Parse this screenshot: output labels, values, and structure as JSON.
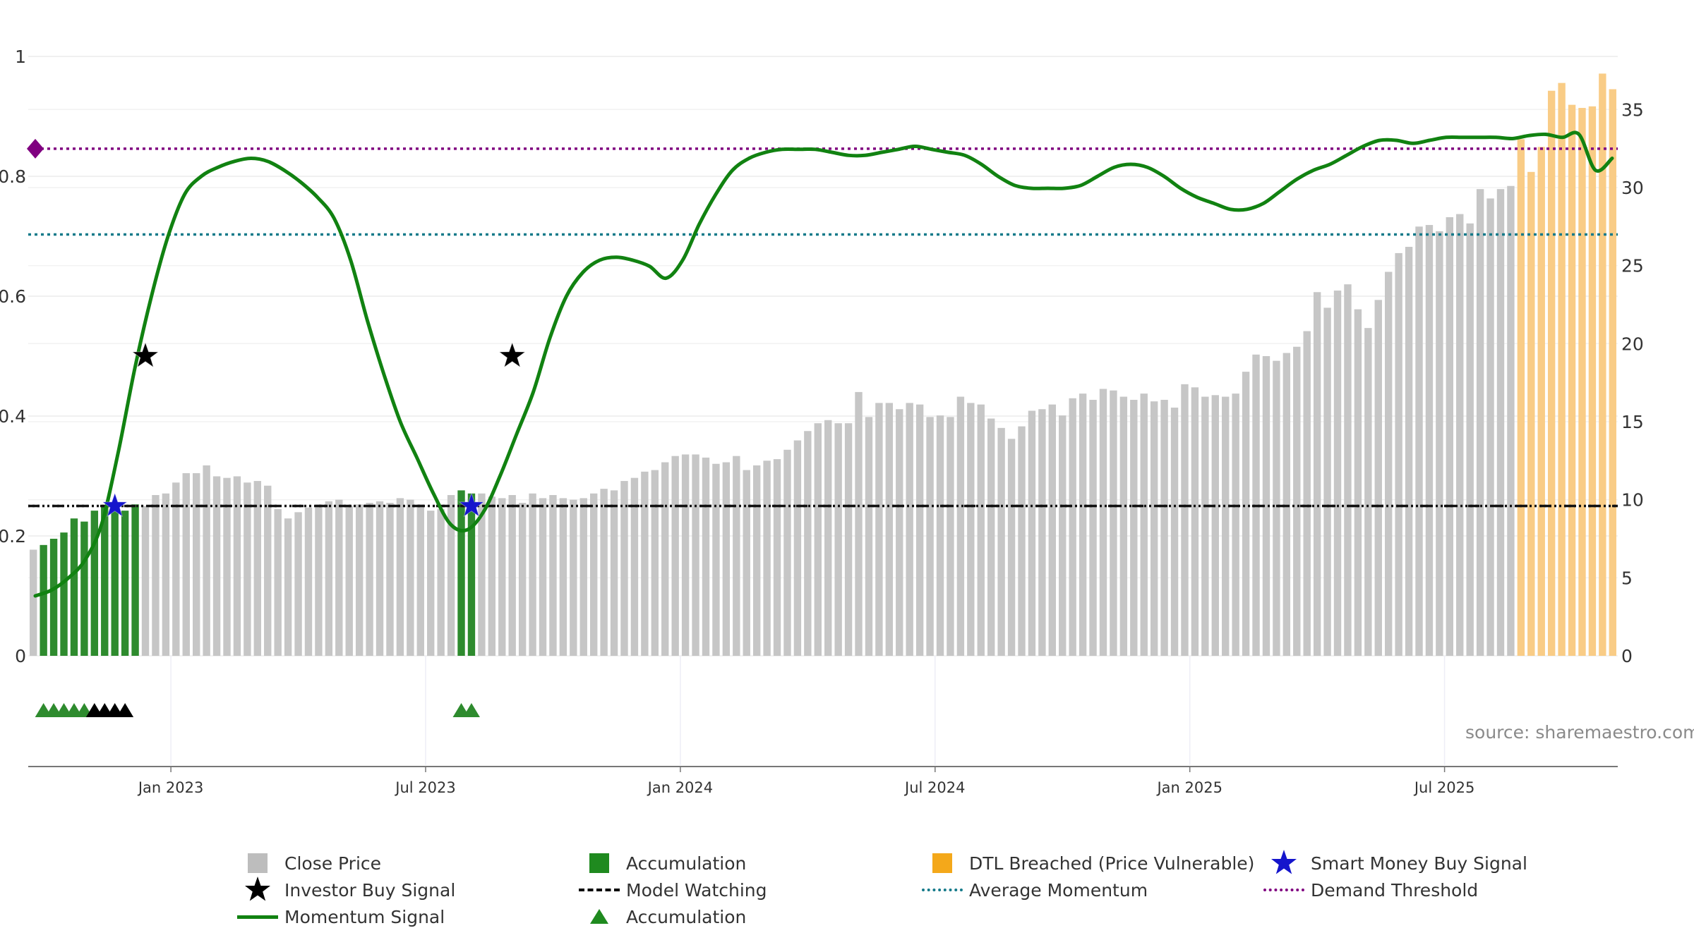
{
  "chart_data": {
    "type": "bar",
    "title": "",
    "source_label": "source: sharemaestro.com",
    "left_axis": {
      "ylim": [
        0,
        1
      ],
      "tick_labels": [
        "0",
        "0.2",
        "0.4",
        "0.6",
        "0.8",
        "1"
      ],
      "tick_values": [
        0,
        0.2,
        0.4,
        0.6,
        0.8,
        1
      ]
    },
    "right_axis": {
      "ylim": [
        0,
        38.4
      ],
      "tick_labels": [
        "0",
        "5",
        "10",
        "15",
        "20",
        "25",
        "30",
        "35"
      ],
      "tick_values": [
        0,
        5,
        10,
        15,
        20,
        25,
        30,
        35
      ]
    },
    "x_axis": {
      "tick_labels": [
        "Jan 2023",
        "Jul 2023",
        "Jan 2024",
        "Jul 2024",
        "Jan 2025",
        "Jul 2025"
      ],
      "tick_bar_index": [
        14,
        39,
        64,
        89,
        114,
        139
      ]
    },
    "close_price": [
      6.8,
      7.1,
      7.5,
      7.9,
      8.8,
      8.6,
      9.3,
      9.6,
      9.5,
      9.3,
      9.7,
      9.6,
      10.3,
      10.4,
      11.1,
      11.7,
      11.7,
      12.2,
      11.5,
      11.4,
      11.5,
      11.1,
      11.2,
      10.9,
      9.4,
      8.8,
      9.2,
      9.5,
      9.7,
      9.9,
      10.0,
      9.6,
      9.7,
      9.8,
      9.9,
      9.8,
      10.1,
      10.0,
      9.7,
      9.3,
      9.4,
      10.3,
      10.6,
      10.4,
      10.4,
      10.2,
      10.1,
      10.3,
      9.8,
      10.4,
      10.1,
      10.3,
      10.1,
      10.0,
      10.1,
      10.4,
      10.7,
      10.6,
      11.2,
      11.4,
      11.8,
      11.9,
      12.4,
      12.8,
      12.9,
      12.9,
      12.7,
      12.3,
      12.4,
      12.8,
      11.9,
      12.2,
      12.5,
      12.6,
      13.2,
      13.8,
      14.4,
      14.9,
      15.1,
      14.9,
      14.9,
      16.9,
      15.3,
      16.2,
      16.2,
      15.8,
      16.2,
      16.1,
      15.3,
      15.4,
      15.3,
      16.6,
      16.2,
      16.1,
      15.2,
      14.6,
      13.9,
      14.7,
      15.7,
      15.8,
      16.1,
      15.4,
      16.5,
      16.8,
      16.4,
      17.1,
      17.0,
      16.6,
      16.4,
      16.8,
      16.3,
      16.4,
      15.9,
      17.4,
      17.2,
      16.6,
      16.7,
      16.6,
      16.8,
      18.2,
      19.3,
      19.2,
      18.9,
      19.4,
      19.8,
      20.8,
      23.3,
      22.3,
      23.4,
      23.8,
      22.2,
      21.0,
      22.8,
      24.6,
      25.8,
      26.2,
      27.5,
      27.6,
      27.2,
      28.1,
      28.3,
      27.7,
      29.9,
      29.3,
      29.9,
      30.1,
      33.1,
      31.0,
      32.6,
      36.2,
      36.7,
      35.3,
      35.1,
      35.2,
      37.3,
      36.3
    ],
    "accumulation_bar_indices": [
      1,
      2,
      3,
      4,
      5,
      6,
      7,
      8,
      9,
      10,
      42,
      43
    ],
    "dtl_breached_bar_indices": [
      146,
      147,
      148,
      149,
      150,
      151,
      152,
      153,
      154,
      155
    ],
    "momentum_signal": [
      0.1,
      0.11,
      0.13,
      0.16,
      0.22,
      0.34,
      0.48,
      0.6,
      0.7,
      0.77,
      0.8,
      0.815,
      0.825,
      0.83,
      0.825,
      0.81,
      0.79,
      0.765,
      0.73,
      0.66,
      0.56,
      0.47,
      0.39,
      0.33,
      0.27,
      0.22,
      0.21,
      0.24,
      0.3,
      0.37,
      0.44,
      0.53,
      0.6,
      0.64,
      0.66,
      0.665,
      0.66,
      0.65,
      0.63,
      0.66,
      0.72,
      0.77,
      0.81,
      0.83,
      0.84,
      0.845,
      0.845,
      0.845,
      0.84,
      0.835,
      0.835,
      0.84,
      0.845,
      0.85,
      0.845,
      0.84,
      0.835,
      0.82,
      0.8,
      0.785,
      0.78,
      0.78,
      0.78,
      0.785,
      0.8,
      0.815,
      0.82,
      0.815,
      0.8,
      0.78,
      0.765,
      0.755,
      0.745,
      0.745,
      0.755,
      0.775,
      0.795,
      0.81,
      0.82,
      0.835,
      0.85,
      0.86,
      0.86,
      0.855,
      0.86,
      0.865,
      0.865,
      0.865,
      0.865,
      0.863,
      0.868,
      0.87,
      0.865,
      0.87,
      0.81,
      0.83
    ],
    "model_watching": 0.25,
    "average_momentum": 0.703,
    "demand_threshold": 0.846,
    "smart_money_buy_signal_bar_indices": [
      8,
      43
    ],
    "investor_buy_signal_bar_indices": [
      11,
      47
    ],
    "accumulation_triangles_bar_indices": [
      1,
      2,
      3,
      4,
      5,
      42,
      43
    ],
    "black_triangles_bar_indices": [
      6,
      7,
      8,
      9
    ],
    "colors": {
      "close_price": "#c6c6c6",
      "accumulation": "#2e8b2e",
      "dtl": "#f9cc86",
      "momentum": "#118211",
      "average_momentum": "#157a8a",
      "demand_threshold": "#800080",
      "smart_money": "#1515cc",
      "investor": "#000000"
    },
    "legend": [
      {
        "label": "Close Price",
        "symbol": "square",
        "color": "#bdbdbd"
      },
      {
        "label": "Accumulation",
        "symbol": "square",
        "color": "#1f8a1f"
      },
      {
        "label": "DTL Breached (Price Vulnerable)",
        "symbol": "square",
        "color": "#f4a81a"
      },
      {
        "label": "Smart Money Buy Signal",
        "symbol": "star",
        "color": "#1515cc"
      },
      {
        "label": "Investor Buy Signal",
        "symbol": "star",
        "color": "#000000"
      },
      {
        "label": "Model Watching",
        "symbol": "dashed",
        "color": "#000000"
      },
      {
        "label": "Average Momentum",
        "symbol": "dotted",
        "color": "#157a8a"
      },
      {
        "label": "Demand Threshold",
        "symbol": "dotted",
        "color": "#800080"
      },
      {
        "label": "Momentum Signal",
        "symbol": "solid",
        "color": "#118211"
      },
      {
        "label": "Accumulation",
        "symbol": "triangle",
        "color": "#1f8a1f"
      }
    ]
  }
}
